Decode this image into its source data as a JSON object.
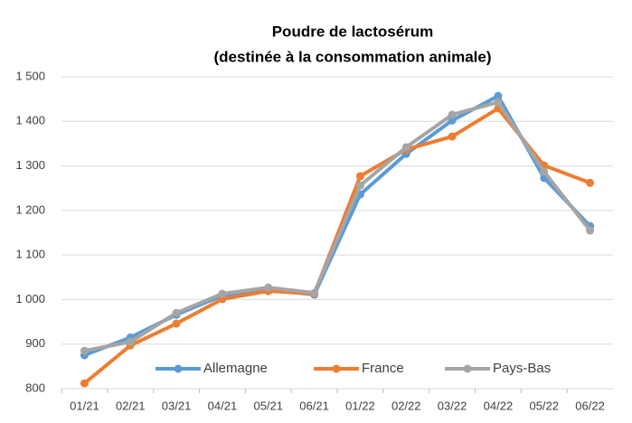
{
  "chart_data": {
    "type": "line",
    "title": "Poudre de lactosérum",
    "subtitle": "(destinée à la consommation animale)",
    "categories": [
      "01/21",
      "02/21",
      "03/21",
      "04/21",
      "05/21",
      "06/21",
      "01/22",
      "02/22",
      "03/22",
      "04/22",
      "05/22",
      "06/22"
    ],
    "series": [
      {
        "name": "Allemagne",
        "color": "#5b9bd5",
        "values": [
          875,
          915,
          966,
          1009,
          1022,
          1011,
          1236,
          1327,
          1402,
          1457,
          1273,
          1165
        ]
      },
      {
        "name": "France",
        "color": "#ed7d31",
        "values": [
          812,
          897,
          946,
          1001,
          1019,
          1013,
          1277,
          1337,
          1366,
          1429,
          1301,
          1262
        ]
      },
      {
        "name": "Pays-Bas",
        "color": "#a5a5a5",
        "values": [
          885,
          905,
          970,
          1013,
          1027,
          1015,
          1256,
          1342,
          1415,
          1443,
          1287,
          1155
        ]
      }
    ],
    "ylim": [
      800,
      1500
    ],
    "yticks": [
      800,
      900,
      {
        "value": 1000,
        "label": "1 000"
      },
      {
        "value": 1100,
        "label": "1 100"
      },
      {
        "value": 1200,
        "label": "1 200"
      },
      {
        "value": 1300,
        "label": "1 300"
      },
      {
        "value": 1400,
        "label": "1 400"
      },
      {
        "value": 1500,
        "label": "1 500"
      }
    ],
    "grid": true,
    "legend": "bottom"
  }
}
